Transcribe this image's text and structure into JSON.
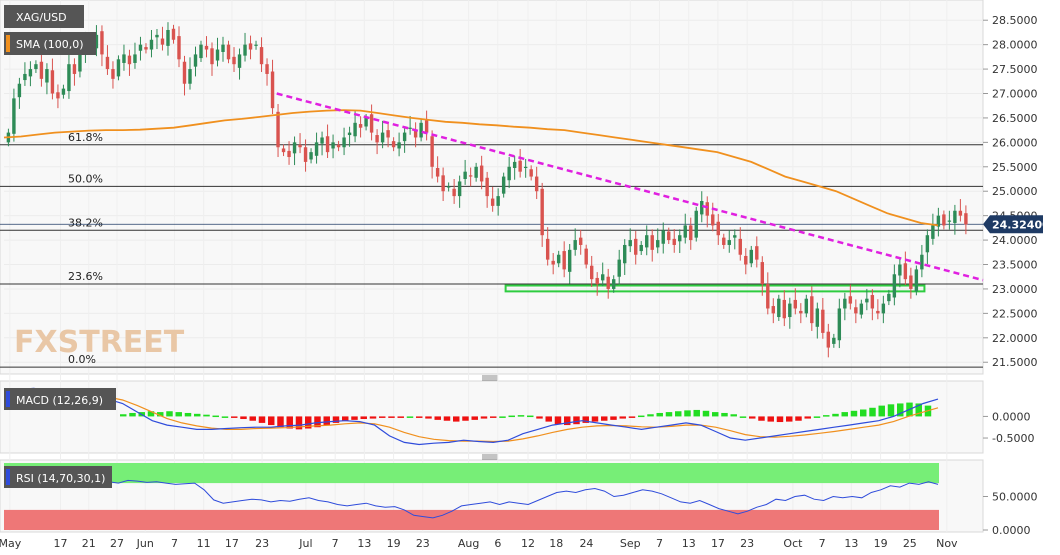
{
  "chart_data": {
    "type": "candlestick",
    "title": "XAG/USD",
    "current_price": "24.32400",
    "colors": {
      "up": "#2e8b57",
      "down": "#d9534f",
      "sma": "#f0901e",
      "trend": "#e020e0",
      "zone": "#2ecc40"
    },
    "overlays": [
      {
        "name": "SMA (100,0)",
        "color": "#f0901e"
      }
    ],
    "fibonacci": [
      {
        "label": "61.8%",
        "value": 25.95
      },
      {
        "label": "50.0%",
        "value": 25.1
      },
      {
        "label": "38.2%",
        "value": 24.2
      },
      {
        "label": "23.6%",
        "value": 23.1
      },
      {
        "label": "0.0%",
        "value": 21.4
      }
    ],
    "trendline": {
      "from": [
        0.28,
        27.0
      ],
      "to": [
        1.0,
        23.18
      ]
    },
    "support_zone": {
      "from": 0.515,
      "to": 0.945,
      "low": 22.95,
      "high": 23.07
    },
    "price_axis": {
      "min": 21.3,
      "max": 28.75,
      "ticks": [
        "28.5000",
        "28.0000",
        "27.5000",
        "27.0000",
        "26.5000",
        "26.0000",
        "25.5000",
        "25.0000",
        "24.5000",
        "24.0000",
        "23.5000",
        "23.0000",
        "22.5000",
        "22.0000",
        "21.5000"
      ]
    },
    "x_axis": {
      "ticks": [
        {
          "label": "May",
          "t": 0.006
        },
        {
          "label": "17",
          "t": 0.058
        },
        {
          "label": "21",
          "t": 0.087
        },
        {
          "label": "27",
          "t": 0.116
        },
        {
          "label": "Jun",
          "t": 0.145
        },
        {
          "label": "7",
          "t": 0.175
        },
        {
          "label": "11",
          "t": 0.205
        },
        {
          "label": "17",
          "t": 0.234
        },
        {
          "label": "23",
          "t": 0.265
        },
        {
          "label": "Jul",
          "t": 0.31
        },
        {
          "label": "7",
          "t": 0.34
        },
        {
          "label": "13",
          "t": 0.37
        },
        {
          "label": "19",
          "t": 0.4
        },
        {
          "label": "23",
          "t": 0.43
        },
        {
          "label": "Aug",
          "t": 0.477
        },
        {
          "label": "6",
          "t": 0.507
        },
        {
          "label": "12",
          "t": 0.538
        },
        {
          "label": "18",
          "t": 0.567
        },
        {
          "label": "24",
          "t": 0.598
        },
        {
          "label": "Sep",
          "t": 0.643
        },
        {
          "label": "7",
          "t": 0.673
        },
        {
          "label": "13",
          "t": 0.703
        },
        {
          "label": "17",
          "t": 0.733
        },
        {
          "label": "23",
          "t": 0.763
        },
        {
          "label": "Oct",
          "t": 0.81
        },
        {
          "label": "7",
          "t": 0.84
        },
        {
          "label": "13",
          "t": 0.87
        },
        {
          "label": "19",
          "t": 0.9
        },
        {
          "label": "25",
          "t": 0.93
        },
        {
          "label": "Nov",
          "t": 0.968
        }
      ]
    },
    "close": [
      26.2,
      26.9,
      27.2,
      27.4,
      27.5,
      27.6,
      27.3,
      27.5,
      27.0,
      26.9,
      27.1,
      27.6,
      27.4,
      27.9,
      28.1,
      27.9,
      28.2,
      27.8,
      27.5,
      27.3,
      27.7,
      27.8,
      27.6,
      27.8,
      28.0,
      27.9,
      28.1,
      28.2,
      28.0,
      28.3,
      28.1,
      27.7,
      27.2,
      27.5,
      27.8,
      28.0,
      27.9,
      27.6,
      27.9,
      28.0,
      27.7,
      27.6,
      27.8,
      28.0,
      27.9,
      28.0,
      27.6,
      27.4,
      26.7,
      25.9,
      25.8,
      25.7,
      26.0,
      25.9,
      25.6,
      25.8,
      26.0,
      26.1,
      25.8,
      26.0,
      25.9,
      26.1,
      26.2,
      26.4,
      26.3,
      26.5,
      26.2,
      26.0,
      26.2,
      26.1,
      25.9,
      26.0,
      26.2,
      26.3,
      26.1,
      26.4,
      26.2,
      25.5,
      25.3,
      25.0,
      25.1,
      24.9,
      25.2,
      25.4,
      25.3,
      25.5,
      25.2,
      24.9,
      24.7,
      24.9,
      25.3,
      25.5,
      25.6,
      25.4,
      25.5,
      25.3,
      25.0,
      24.1,
      23.6,
      23.5,
      23.7,
      23.4,
      23.8,
      24.0,
      23.9,
      23.5,
      23.2,
      23.1,
      23.3,
      23.0,
      23.2,
      23.6,
      23.9,
      24.0,
      23.7,
      23.9,
      24.1,
      23.8,
      24.0,
      24.2,
      24.0,
      23.9,
      24.1,
      24.3,
      24.0,
      24.6,
      24.8,
      24.5,
      24.3,
      24.1,
      23.9,
      24.0,
      24.1,
      23.7,
      23.5,
      23.8,
      23.6,
      23.1,
      22.6,
      22.5,
      22.8,
      22.4,
      22.7,
      22.6,
      22.5,
      22.8,
      22.3,
      22.6,
      22.1,
      21.8,
      22.0,
      22.6,
      22.8,
      22.7,
      22.5,
      22.7,
      22.8,
      22.6,
      22.5,
      22.7,
      22.9,
      23.3,
      23.5,
      23.2,
      23.0,
      23.4,
      23.7,
      24.1,
      24.3,
      24.5,
      24.3,
      24.4,
      24.6,
      24.5,
      24.32
    ],
    "sma100": [
      26.1,
      26.12,
      26.16,
      26.2,
      26.22,
      26.24,
      26.25,
      26.25,
      26.26,
      26.28,
      26.3,
      26.35,
      26.4,
      26.45,
      26.48,
      26.52,
      26.56,
      26.6,
      26.63,
      26.65,
      26.66,
      26.65,
      26.6,
      26.55,
      26.5,
      26.46,
      26.42,
      26.4,
      26.37,
      26.35,
      26.32,
      26.3,
      26.27,
      26.25,
      26.2,
      26.15,
      26.1,
      26.05,
      26.0,
      25.95,
      25.9,
      25.85,
      25.8,
      25.7,
      25.6,
      25.45,
      25.3,
      25.2,
      25.1,
      25.0,
      24.85,
      24.7,
      24.55,
      24.45,
      24.35,
      24.3
    ],
    "macd": {
      "label": "MACD (12,26,9)",
      "ticks": [
        "0.0000",
        "-0.5000"
      ],
      "range": [
        -0.8,
        0.75
      ],
      "histogram": [
        0.05,
        0.08,
        0.1,
        0.12,
        0.1,
        0.12,
        0.1,
        0.08,
        0.06,
        0.04,
        0.02,
        0.0,
        -0.03,
        -0.06,
        -0.1,
        -0.15,
        -0.2,
        -0.25,
        -0.28,
        -0.3,
        -0.28,
        -0.25,
        -0.2,
        -0.15,
        -0.1,
        -0.08,
        -0.06,
        -0.05,
        -0.03,
        -0.02,
        -0.01,
        0.0,
        -0.02,
        -0.05,
        -0.08,
        -0.1,
        -0.12,
        -0.1,
        -0.08,
        -0.05,
        -0.02,
        0.0,
        0.02,
        0.03,
        0.02,
        -0.05,
        -0.12,
        -0.18,
        -0.2,
        -0.18,
        -0.15,
        -0.12,
        -0.1,
        -0.08,
        -0.05,
        -0.02,
        0.02,
        0.05,
        0.08,
        0.1,
        0.12,
        0.14,
        0.15,
        0.13,
        0.1,
        0.08,
        0.05,
        0.0,
        -0.05,
        -0.1,
        -0.12,
        -0.13,
        -0.12,
        -0.1,
        -0.05,
        0.0,
        0.03,
        0.06,
        0.1,
        0.13,
        0.16,
        0.2,
        0.25,
        0.28,
        0.3,
        0.32,
        0.3,
        0.25
      ],
      "macd_line": [
        0.6,
        0.62,
        0.65,
        0.6,
        0.55,
        0.5,
        0.45,
        0.4,
        0.3,
        0.1,
        -0.1,
        -0.2,
        -0.25,
        -0.3,
        -0.3,
        -0.28,
        -0.26,
        -0.25,
        -0.25,
        -0.22,
        -0.2,
        -0.15,
        -0.12,
        -0.1,
        -0.12,
        -0.2,
        -0.45,
        -0.6,
        -0.65,
        -0.62,
        -0.6,
        -0.55,
        -0.58,
        -0.6,
        -0.55,
        -0.4,
        -0.3,
        -0.2,
        -0.15,
        -0.1,
        -0.15,
        -0.2,
        -0.25,
        -0.3,
        -0.25,
        -0.2,
        -0.15,
        -0.2,
        -0.35,
        -0.5,
        -0.55,
        -0.5,
        -0.45,
        -0.4,
        -0.35,
        -0.3,
        -0.25,
        -0.2,
        -0.15,
        -0.1,
        0.0,
        0.15,
        0.3,
        0.4
      ],
      "signal_line": [
        0.55,
        0.57,
        0.6,
        0.6,
        0.58,
        0.55,
        0.5,
        0.45,
        0.38,
        0.25,
        0.1,
        -0.05,
        -0.15,
        -0.22,
        -0.27,
        -0.3,
        -0.3,
        -0.28,
        -0.27,
        -0.26,
        -0.24,
        -0.22,
        -0.2,
        -0.17,
        -0.15,
        -0.17,
        -0.25,
        -0.37,
        -0.47,
        -0.53,
        -0.56,
        -0.57,
        -0.57,
        -0.58,
        -0.57,
        -0.52,
        -0.45,
        -0.37,
        -0.3,
        -0.25,
        -0.22,
        -0.21,
        -0.22,
        -0.24,
        -0.25,
        -0.23,
        -0.2,
        -0.2,
        -0.25,
        -0.33,
        -0.42,
        -0.47,
        -0.48,
        -0.46,
        -0.43,
        -0.39,
        -0.35,
        -0.3,
        -0.25,
        -0.2,
        -0.12,
        0.0,
        0.1,
        0.2
      ]
    },
    "rsi": {
      "label": "RSI (14,70,30,1)",
      "ticks": [
        "50.0000",
        "0.0000"
      ],
      "overbought": 70,
      "oversold": 30,
      "values": [
        72,
        75,
        78,
        74,
        70,
        72,
        75,
        73,
        71,
        74,
        76,
        72,
        70,
        74,
        73,
        71,
        72,
        70,
        68,
        69,
        70,
        60,
        45,
        40,
        42,
        44,
        46,
        45,
        42,
        44,
        43,
        46,
        48,
        44,
        42,
        38,
        36,
        38,
        40,
        36,
        34,
        35,
        30,
        22,
        20,
        18,
        22,
        28,
        36,
        38,
        40,
        42,
        38,
        42,
        40,
        38,
        44,
        50,
        56,
        58,
        56,
        60,
        62,
        58,
        50,
        52,
        56,
        60,
        58,
        54,
        48,
        42,
        40,
        44,
        38,
        32,
        28,
        24,
        28,
        34,
        38,
        46,
        44,
        50,
        52,
        46,
        44,
        50,
        48,
        50,
        48,
        56,
        60,
        66,
        64,
        70,
        68,
        72,
        68
      ]
    }
  }
}
